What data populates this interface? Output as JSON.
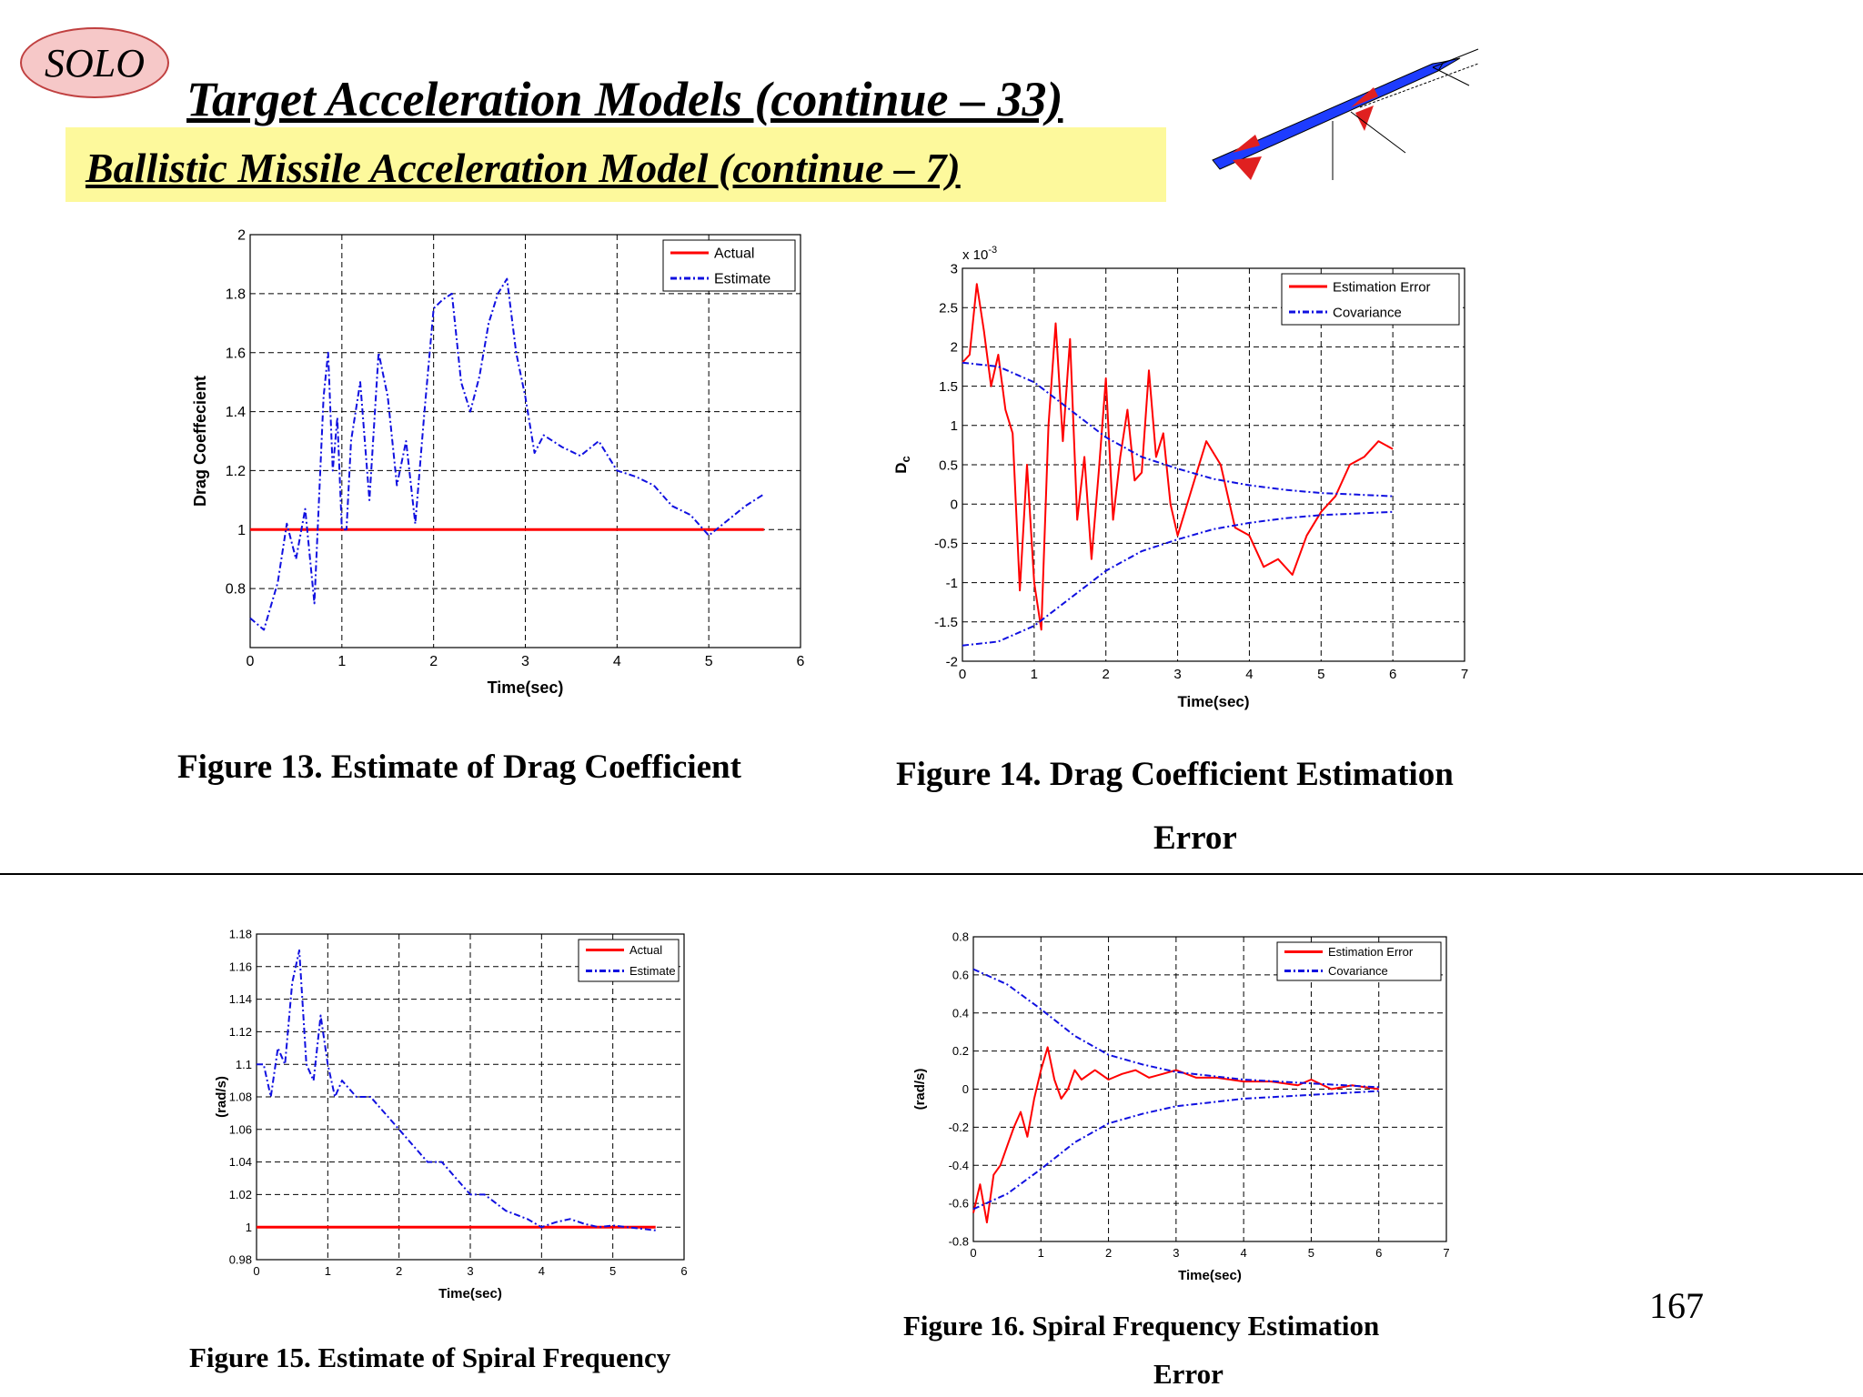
{
  "slide": {
    "badge": "SOLO",
    "title": "Target Acceleration Models (continue – 33)",
    "subtitle": "Ballistic Missile Acceleration Model (continue – 7)",
    "page_number": "167",
    "figure_captions": {
      "fig13": "Figure 13. Estimate of Drag Coefficient",
      "fig14_line1": "Figure 14. Drag Coefficient Estimation",
      "fig14_line2": "Error",
      "fig15": "Figure 15. Estimate of Spiral Frequency",
      "fig16_line1": "Figure 16. Spiral Frequency Estimation",
      "fig16_line2": "Error"
    },
    "colors": {
      "actual": "#ff0000",
      "estimate": "#1010e0",
      "subtitle_bg": "#fdf99c",
      "badge_bg": "#f6c8c8"
    }
  },
  "chart_data": [
    {
      "id": "fig13",
      "type": "line",
      "xlabel": "Time(sec)",
      "ylabel": "Drag Coeffecient",
      "xlim": [
        0,
        6
      ],
      "ylim": [
        0.6,
        2
      ],
      "xticks": [
        0,
        1,
        2,
        3,
        4,
        5,
        6
      ],
      "yticks": [
        0.8,
        1,
        1.2,
        1.4,
        1.6,
        1.8,
        2
      ],
      "grid": true,
      "legend": "top-right",
      "series": [
        {
          "name": "Actual",
          "style": "solid",
          "color": "#ff0000",
          "x": [
            0,
            5.6
          ],
          "y": [
            1,
            1
          ]
        },
        {
          "name": "Estimate",
          "style": "dashdot",
          "color": "#1010e0",
          "x": [
            0,
            0.15,
            0.3,
            0.4,
            0.5,
            0.6,
            0.7,
            0.8,
            0.85,
            0.9,
            0.95,
            1.0,
            1.05,
            1.1,
            1.2,
            1.3,
            1.4,
            1.5,
            1.6,
            1.7,
            1.8,
            1.9,
            2.0,
            2.1,
            2.2,
            2.3,
            2.4,
            2.5,
            2.6,
            2.7,
            2.8,
            2.9,
            3.0,
            3.1,
            3.2,
            3.4,
            3.6,
            3.8,
            4.0,
            4.2,
            4.4,
            4.6,
            4.8,
            5.0,
            5.2,
            5.4,
            5.6
          ],
          "y": [
            0.7,
            0.66,
            0.82,
            1.02,
            0.9,
            1.07,
            0.75,
            1.45,
            1.6,
            1.2,
            1.38,
            1.0,
            1.0,
            1.3,
            1.5,
            1.1,
            1.6,
            1.45,
            1.15,
            1.3,
            1.02,
            1.4,
            1.75,
            1.78,
            1.8,
            1.5,
            1.4,
            1.52,
            1.7,
            1.8,
            1.85,
            1.6,
            1.45,
            1.26,
            1.32,
            1.28,
            1.25,
            1.3,
            1.2,
            1.18,
            1.15,
            1.08,
            1.05,
            0.98,
            1.03,
            1.08,
            1.12
          ]
        }
      ]
    },
    {
      "id": "fig14",
      "type": "line",
      "xlabel": "Time(sec)",
      "ylabel": "D_c",
      "multiplier": "x 10^-3",
      "xlim": [
        0,
        7
      ],
      "ylim": [
        -2,
        3
      ],
      "xticks": [
        0,
        1,
        2,
        3,
        4,
        5,
        6,
        7
      ],
      "yticks": [
        -2,
        -1.5,
        -1,
        -0.5,
        0,
        0.5,
        1,
        1.5,
        2,
        2.5,
        3
      ],
      "grid": true,
      "legend": "top-right",
      "series": [
        {
          "name": "Estimation Error",
          "style": "solid",
          "color": "#ff0000",
          "x": [
            0,
            0.1,
            0.2,
            0.3,
            0.4,
            0.5,
            0.6,
            0.7,
            0.8,
            0.9,
            1.0,
            1.1,
            1.2,
            1.3,
            1.4,
            1.5,
            1.6,
            1.7,
            1.8,
            1.9,
            2.0,
            2.1,
            2.2,
            2.3,
            2.4,
            2.5,
            2.6,
            2.7,
            2.8,
            2.9,
            3.0,
            3.2,
            3.4,
            3.6,
            3.8,
            4.0,
            4.2,
            4.4,
            4.6,
            4.8,
            5.0,
            5.2,
            5.4,
            5.6,
            5.8,
            6.0
          ],
          "y": [
            1.8,
            1.9,
            2.8,
            2.2,
            1.5,
            1.9,
            1.2,
            0.9,
            -1.1,
            0.5,
            -1.0,
            -1.6,
            1.0,
            2.3,
            0.8,
            2.1,
            -0.2,
            0.6,
            -0.7,
            0.4,
            1.6,
            -0.2,
            0.6,
            1.2,
            0.3,
            0.4,
            1.7,
            0.6,
            0.9,
            0.0,
            -0.4,
            0.2,
            0.8,
            0.5,
            -0.3,
            -0.4,
            -0.8,
            -0.7,
            -0.9,
            -0.4,
            -0.1,
            0.1,
            0.5,
            0.6,
            0.8,
            0.7
          ]
        },
        {
          "name": "Covariance",
          "style": "dashdot",
          "color": "#1010e0",
          "x": [
            0,
            0.5,
            1.0,
            1.5,
            2.0,
            2.5,
            3.0,
            3.5,
            4.0,
            4.5,
            5.0,
            5.5,
            6.0
          ],
          "y": [
            1.8,
            1.75,
            1.55,
            1.2,
            0.85,
            0.6,
            0.45,
            0.32,
            0.24,
            0.18,
            0.14,
            0.12,
            0.1
          ],
          "mirror": true
        }
      ]
    },
    {
      "id": "fig15",
      "type": "line",
      "xlabel": "Time(sec)",
      "ylabel": "(rad/s)",
      "xlim": [
        0,
        6
      ],
      "ylim": [
        0.98,
        1.18
      ],
      "xticks": [
        0,
        1,
        2,
        3,
        4,
        5,
        6
      ],
      "yticks": [
        0.98,
        1,
        1.02,
        1.04,
        1.06,
        1.08,
        1.1,
        1.12,
        1.14,
        1.16,
        1.18
      ],
      "grid": true,
      "legend": "top-right",
      "series": [
        {
          "name": "Actual",
          "style": "solid",
          "color": "#ff0000",
          "x": [
            0,
            5.6
          ],
          "y": [
            1,
            1
          ]
        },
        {
          "name": "Estimate",
          "style": "dashdot",
          "color": "#1010e0",
          "x": [
            0,
            0.1,
            0.2,
            0.3,
            0.4,
            0.5,
            0.6,
            0.7,
            0.8,
            0.9,
            1.0,
            1.1,
            1.2,
            1.4,
            1.6,
            1.8,
            2.0,
            2.2,
            2.4,
            2.6,
            2.8,
            3.0,
            3.2,
            3.5,
            3.8,
            4.0,
            4.2,
            4.4,
            4.6,
            4.8,
            5.0,
            5.2,
            5.4,
            5.6
          ],
          "y": [
            1.1,
            1.1,
            1.08,
            1.11,
            1.1,
            1.15,
            1.17,
            1.1,
            1.09,
            1.13,
            1.1,
            1.08,
            1.09,
            1.08,
            1.08,
            1.07,
            1.06,
            1.05,
            1.04,
            1.04,
            1.03,
            1.02,
            1.02,
            1.01,
            1.005,
            1.0,
            1.003,
            1.005,
            1.002,
            1.0,
            1.001,
            1.0,
            0.999,
            0.998
          ]
        }
      ]
    },
    {
      "id": "fig16",
      "type": "line",
      "xlabel": "Time(sec)",
      "ylabel": "(rad/s)",
      "xlim": [
        0,
        7
      ],
      "ylim": [
        -0.8,
        0.8
      ],
      "xticks": [
        0,
        1,
        2,
        3,
        4,
        5,
        6,
        7
      ],
      "yticks": [
        -0.8,
        -0.6,
        -0.4,
        -0.2,
        0,
        0.2,
        0.4,
        0.6,
        0.8
      ],
      "grid": true,
      "legend": "top-right",
      "series": [
        {
          "name": "Estimation Error",
          "style": "solid",
          "color": "#ff0000",
          "x": [
            0,
            0.1,
            0.2,
            0.3,
            0.4,
            0.5,
            0.6,
            0.7,
            0.8,
            0.9,
            1.0,
            1.1,
            1.2,
            1.3,
            1.4,
            1.5,
            1.6,
            1.8,
            2.0,
            2.2,
            2.4,
            2.6,
            2.8,
            3.0,
            3.3,
            3.6,
            4.0,
            4.4,
            4.8,
            5.0,
            5.3,
            5.6,
            6.0
          ],
          "y": [
            -0.65,
            -0.5,
            -0.7,
            -0.45,
            -0.4,
            -0.3,
            -0.2,
            -0.12,
            -0.25,
            -0.05,
            0.1,
            0.22,
            0.05,
            -0.05,
            0.0,
            0.1,
            0.05,
            0.1,
            0.05,
            0.08,
            0.1,
            0.06,
            0.08,
            0.1,
            0.06,
            0.06,
            0.04,
            0.04,
            0.02,
            0.05,
            0.0,
            0.02,
            0.0
          ]
        },
        {
          "name": "Covariance",
          "style": "dashdot",
          "color": "#1010e0",
          "x": [
            0,
            0.5,
            1.0,
            1.5,
            2.0,
            2.5,
            3.0,
            3.5,
            4.0,
            4.5,
            5.0,
            5.5,
            6.0
          ],
          "y": [
            0.63,
            0.55,
            0.42,
            0.28,
            0.18,
            0.13,
            0.09,
            0.07,
            0.05,
            0.04,
            0.03,
            0.02,
            0.01
          ],
          "mirror": true
        }
      ]
    }
  ]
}
